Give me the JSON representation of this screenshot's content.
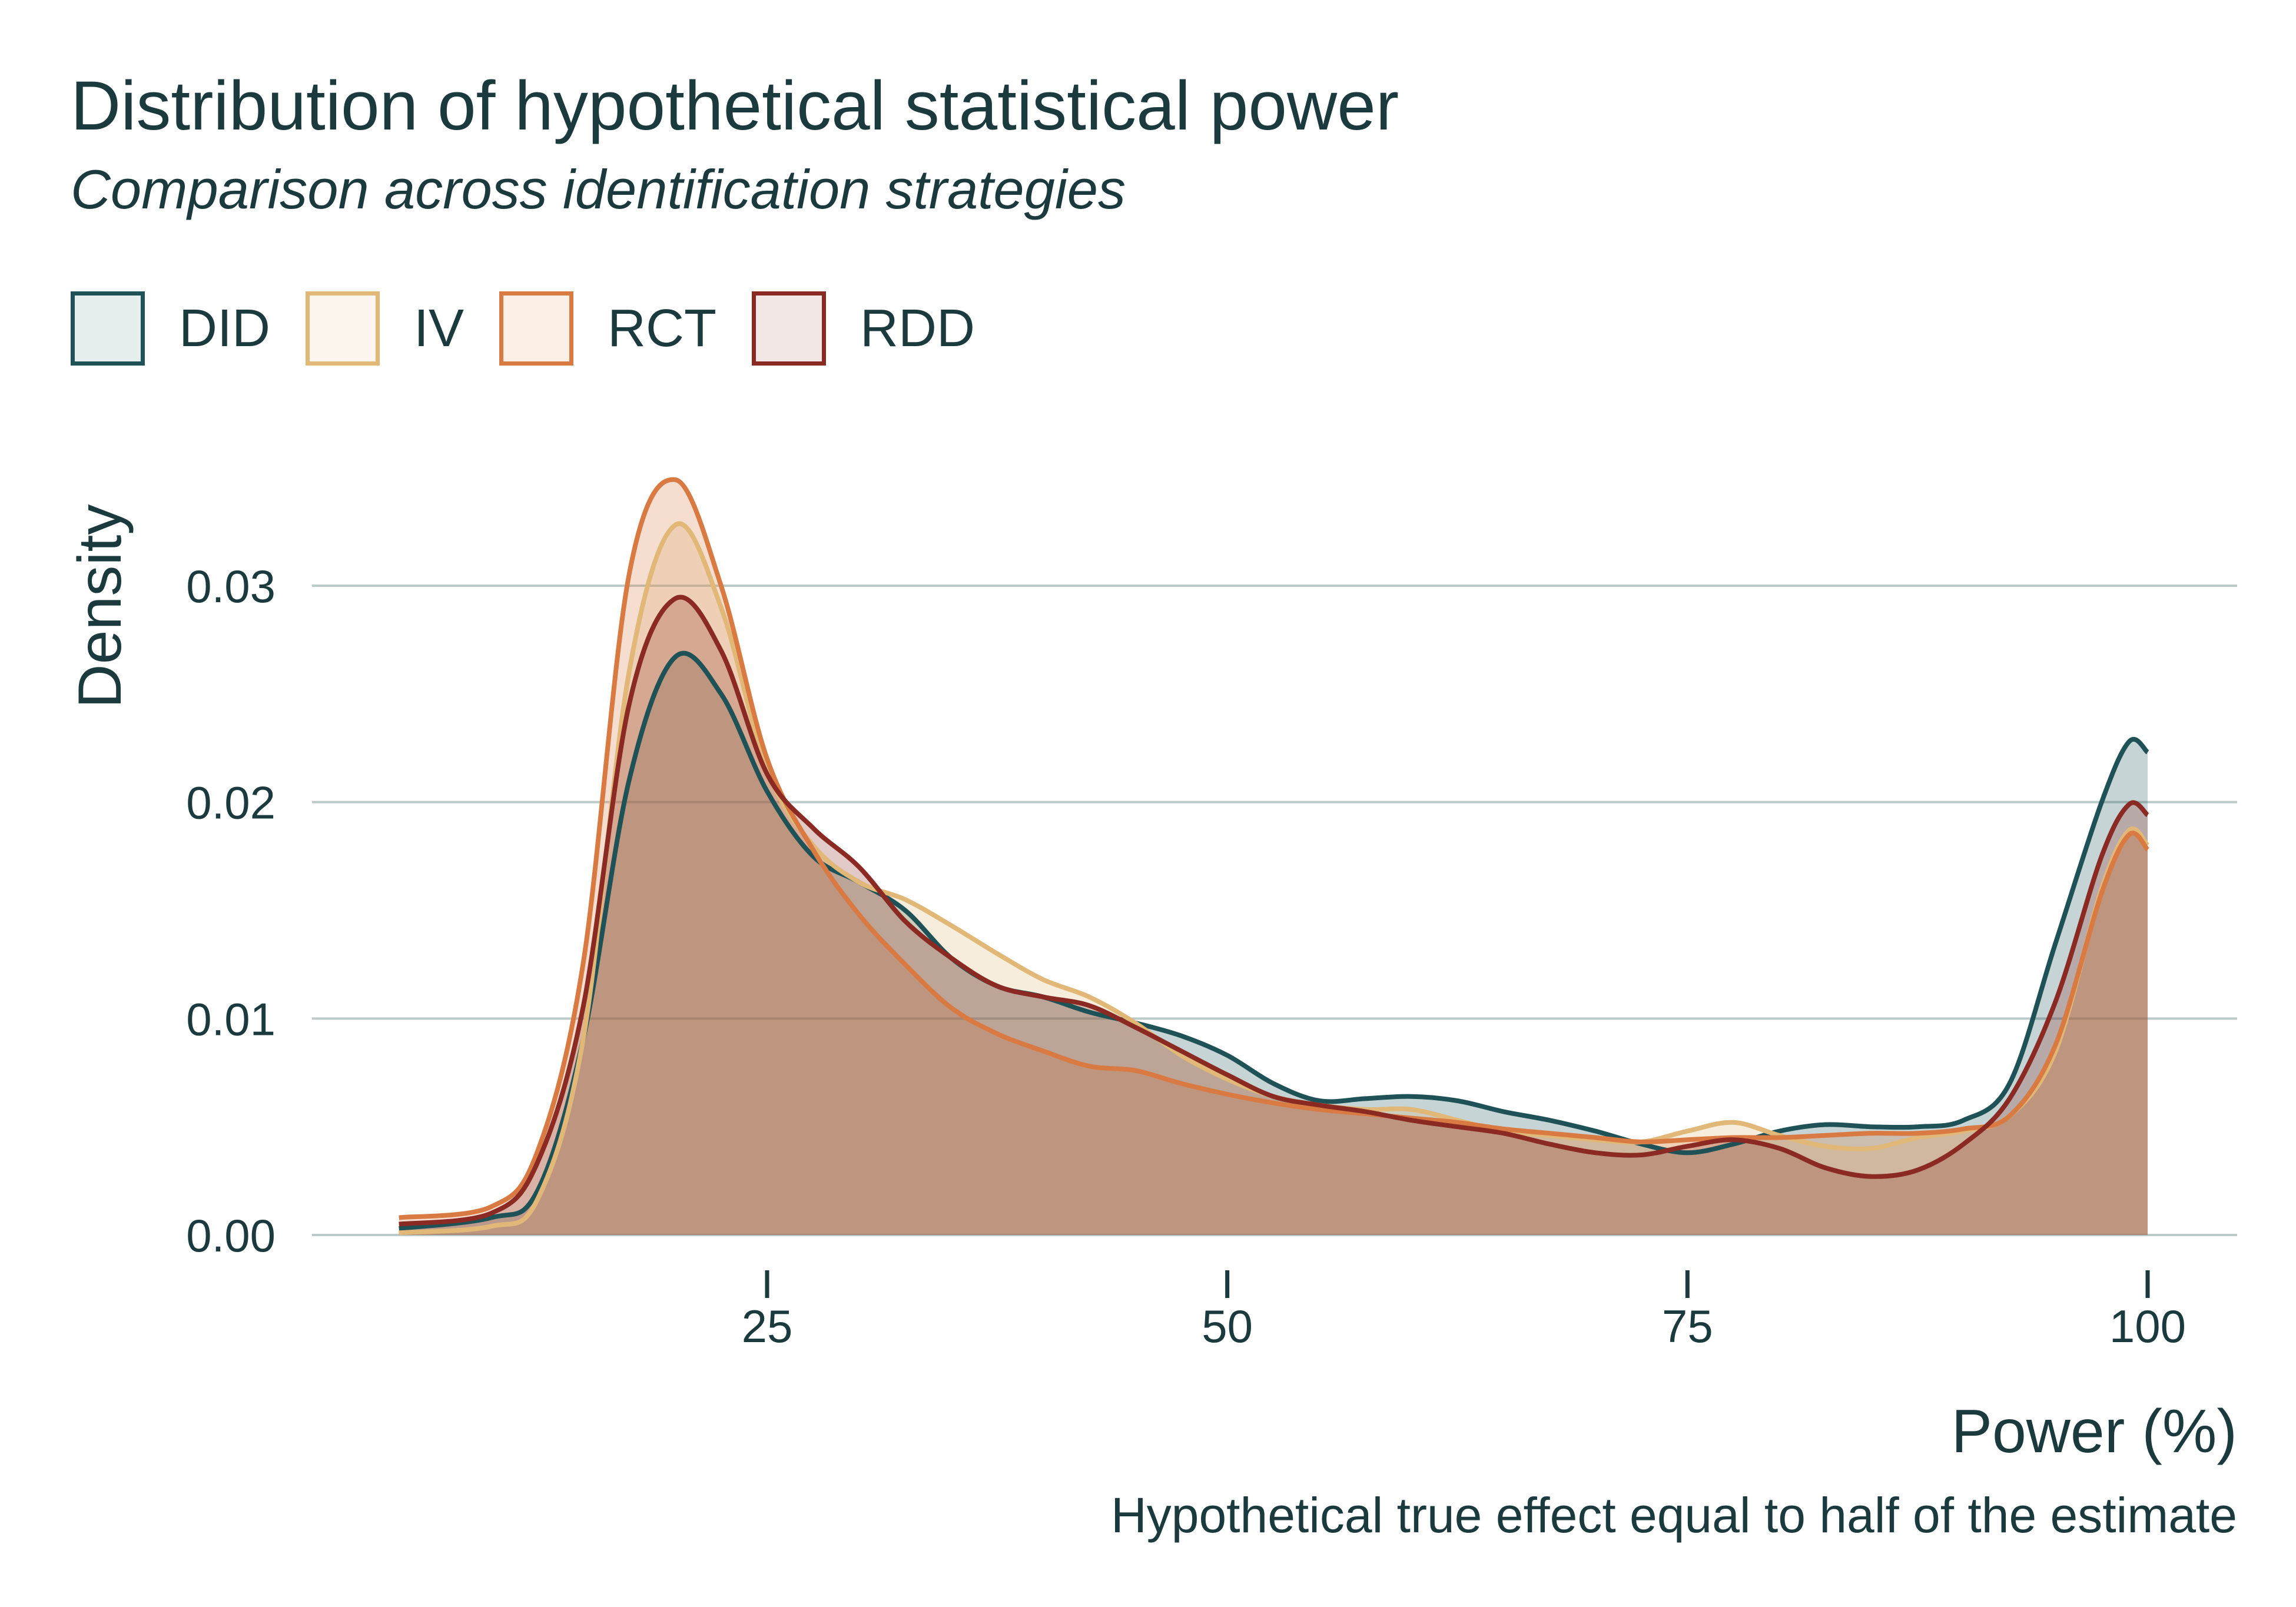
{
  "title": "Distribution of hypothetical statistical power",
  "subtitle": "Comparison across identification strategies",
  "caption": "Hypothetical true effect equal to half of the estimate",
  "legend": [
    {
      "label": "DID",
      "color": "#1e5256",
      "fill": "#e6efee"
    },
    {
      "label": "IV",
      "color": "#e1b878",
      "fill": "#fcf6ee"
    },
    {
      "label": "RCT",
      "color": "#d97a42",
      "fill": "#fbefe6"
    },
    {
      "label": "RDD",
      "color": "#8b2a23",
      "fill": "#f2e7e5"
    }
  ],
  "chart_data": {
    "type": "area",
    "title": "Distribution of hypothetical statistical power",
    "subtitle": "Comparison across identification strategies",
    "xlabel": "Power (%)",
    "ylabel": "Density",
    "caption": "Hypothetical true effect equal to half of the estimate",
    "xlim": [
      0,
      105
    ],
    "ylim": [
      0,
      0.036
    ],
    "x_ticks": [
      25,
      50,
      75,
      100
    ],
    "x_tick_labels": [
      "25",
      "50",
      "75",
      "100"
    ],
    "y_ticks": [
      0.0,
      0.01,
      0.02,
      0.03
    ],
    "y_tick_labels": [
      "0.00",
      "0.01",
      "0.02",
      "0.03"
    ],
    "grid": "horizontal",
    "legend_position": "top-left",
    "x": [
      5,
      10,
      12.5,
      15,
      17.5,
      20,
      22.5,
      25,
      27.5,
      30,
      32.5,
      35,
      37.5,
      40,
      42.5,
      45,
      47.5,
      50,
      52.5,
      55,
      57.5,
      60,
      62.5,
      65,
      67.5,
      70,
      72.5,
      75,
      77.5,
      80,
      82.5,
      85,
      87.5,
      90,
      92.5,
      95,
      97.5,
      99,
      100
    ],
    "series": [
      {
        "name": "DID",
        "color": "#1e5256",
        "fill_opacity": 0.25,
        "values": [
          0.0003,
          0.0008,
          0.002,
          0.009,
          0.021,
          0.0267,
          0.025,
          0.0205,
          0.0175,
          0.0163,
          0.015,
          0.0128,
          0.0115,
          0.011,
          0.0103,
          0.0098,
          0.0092,
          0.0083,
          0.007,
          0.0062,
          0.0063,
          0.0064,
          0.0062,
          0.0057,
          0.0053,
          0.0048,
          0.0042,
          0.0038,
          0.0042,
          0.0048,
          0.0051,
          0.005,
          0.005,
          0.0053,
          0.007,
          0.0135,
          0.02,
          0.0228,
          0.0223
        ]
      },
      {
        "name": "IV",
        "color": "#e1b878",
        "fill_opacity": 0.25,
        "values": [
          0.0001,
          0.0004,
          0.0016,
          0.009,
          0.026,
          0.0328,
          0.029,
          0.0215,
          0.018,
          0.0163,
          0.0155,
          0.0143,
          0.013,
          0.0118,
          0.011,
          0.0098,
          0.0083,
          0.0072,
          0.0064,
          0.006,
          0.0058,
          0.0058,
          0.0053,
          0.0048,
          0.0046,
          0.0044,
          0.0043,
          0.0048,
          0.0052,
          0.0046,
          0.0041,
          0.004,
          0.0045,
          0.0048,
          0.0055,
          0.0085,
          0.016,
          0.0187,
          0.018
        ]
      },
      {
        "name": "RCT",
        "color": "#d97a42",
        "fill_opacity": 0.25,
        "values": [
          0.0008,
          0.0013,
          0.0038,
          0.0125,
          0.0305,
          0.0349,
          0.03,
          0.022,
          0.0178,
          0.0148,
          0.0125,
          0.0105,
          0.0093,
          0.0085,
          0.0078,
          0.0076,
          0.007,
          0.0065,
          0.0061,
          0.0058,
          0.0056,
          0.0054,
          0.0052,
          0.0049,
          0.0047,
          0.0045,
          0.0043,
          0.0044,
          0.0045,
          0.0045,
          0.0046,
          0.0047,
          0.0047,
          0.0049,
          0.0055,
          0.0088,
          0.0158,
          0.0185,
          0.0178
        ]
      },
      {
        "name": "RDD",
        "color": "#8b2a23",
        "fill_opacity": 0.25,
        "values": [
          0.0005,
          0.001,
          0.0033,
          0.0105,
          0.0245,
          0.0294,
          0.027,
          0.0213,
          0.0188,
          0.017,
          0.0145,
          0.0128,
          0.0115,
          0.011,
          0.0106,
          0.0096,
          0.0085,
          0.0074,
          0.0064,
          0.006,
          0.0057,
          0.0053,
          0.005,
          0.0047,
          0.0042,
          0.0038,
          0.0037,
          0.0041,
          0.0044,
          0.004,
          0.0031,
          0.0027,
          0.003,
          0.0042,
          0.0063,
          0.0108,
          0.0175,
          0.0199,
          0.0194
        ]
      }
    ]
  }
}
